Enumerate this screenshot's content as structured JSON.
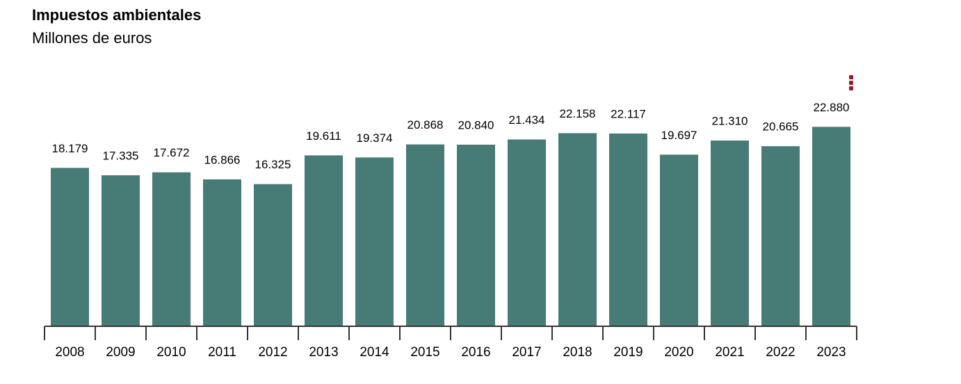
{
  "colors": {
    "bar": "#467c75",
    "bar_stroke": "#ffffff",
    "axis": "#333333",
    "menu": "#9b1b30",
    "text": "#000000"
  },
  "menu": {
    "icon": "vertical-ellipsis-icon"
  },
  "chart_data": {
    "type": "bar",
    "title": "Impuestos ambientales",
    "subtitle": "Millones de euros",
    "xlabel": "",
    "ylabel": "",
    "grid": false,
    "ylim": [
      0,
      23400
    ],
    "categories": [
      "2008",
      "2009",
      "2010",
      "2011",
      "2012",
      "2013",
      "2014",
      "2015",
      "2016",
      "2017",
      "2018",
      "2019",
      "2020",
      "2021",
      "2022",
      "2023"
    ],
    "values": [
      18179,
      17335,
      17672,
      16866,
      16325,
      19611,
      19374,
      20868,
      20840,
      21434,
      22158,
      22117,
      19697,
      21310,
      20665,
      22880
    ],
    "value_labels": [
      "18.179",
      "17.335",
      "17.672",
      "16.866",
      "16.325",
      "19.611",
      "19.374",
      "20.868",
      "20.840",
      "21.434",
      "22.158",
      "22.117",
      "19.697",
      "21.310",
      "20.665",
      "22.880"
    ]
  }
}
